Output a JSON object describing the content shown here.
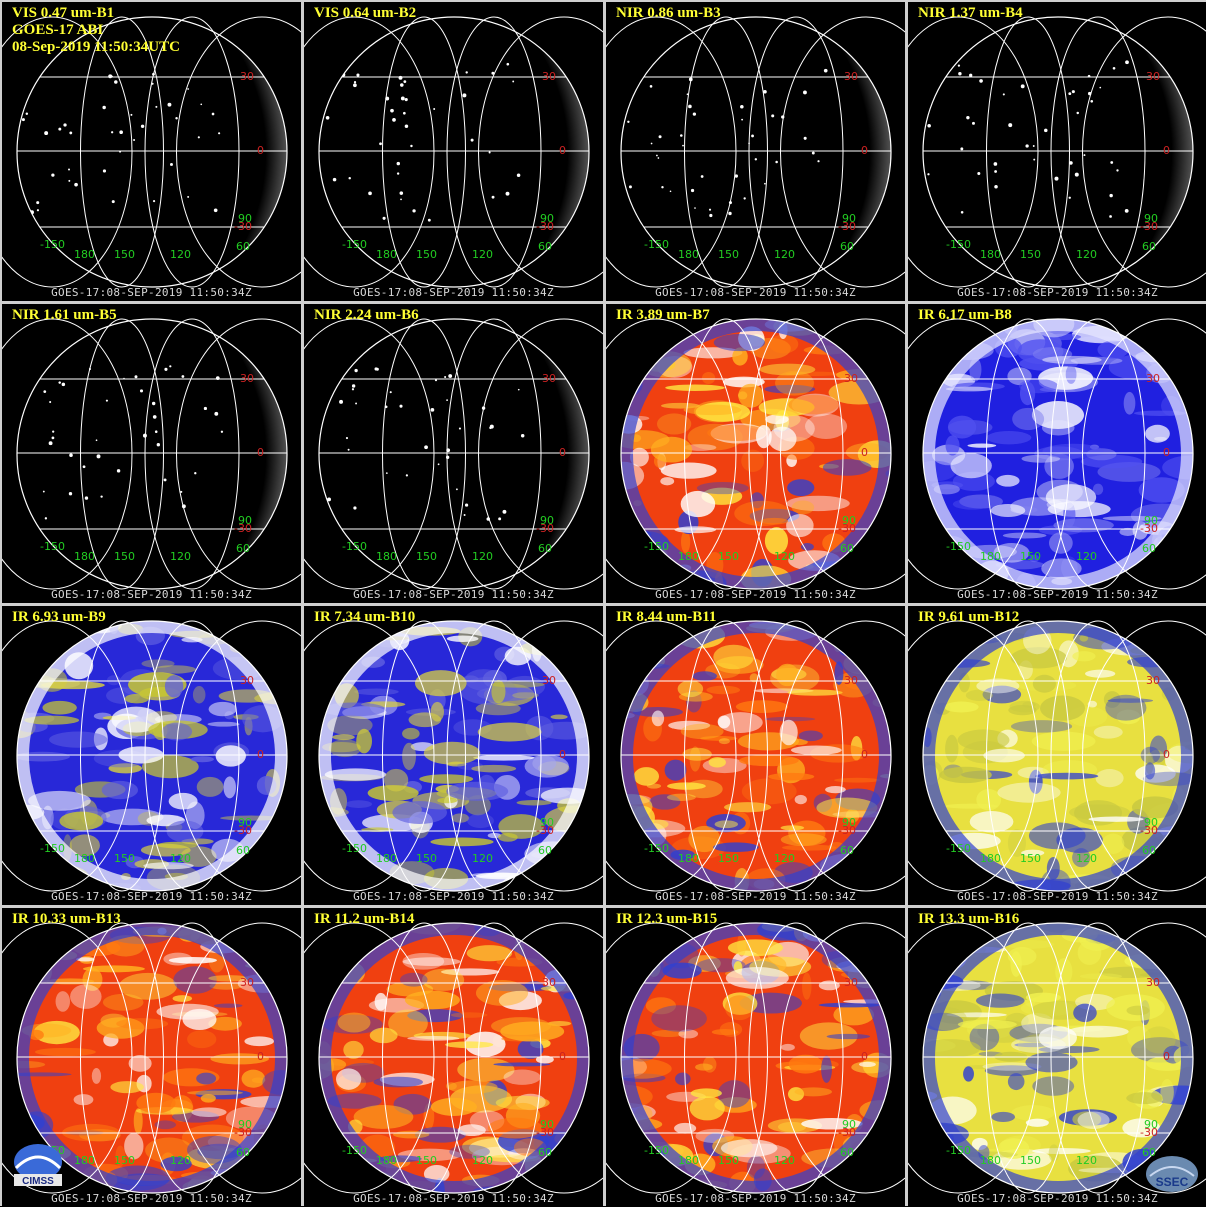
{
  "header": {
    "satellite": "GOES-17 ABI",
    "datetime": "08-Sep-2019 11:50:34UTC"
  },
  "footer_text": "GOES-17:08-SEP-2019 11:50:34Z",
  "grid_labels": {
    "lat": [
      "30",
      "0",
      "-30"
    ],
    "lon": [
      "-150",
      "180",
      "150",
      "120",
      "60"
    ],
    "lon_extra": "90"
  },
  "colors": {
    "title": "#ffff33",
    "grid_line": "#ffffff",
    "lat_label": "#cc2222",
    "lon_label": "#22cc22",
    "footer": "#d8d8d8",
    "panel_border": "#cfcfcf"
  },
  "logos": {
    "left": "CIMSS",
    "right": "SSEC"
  },
  "panels": [
    {
      "title": "VIS 0.47 um-B1",
      "kind": "vis"
    },
    {
      "title": "VIS 0.64 um-B2",
      "kind": "vis"
    },
    {
      "title": "NIR 0.86 um-B3",
      "kind": "vis"
    },
    {
      "title": "NIR 1.37 um-B4",
      "kind": "vis"
    },
    {
      "title": "NIR 1.61 um-B5",
      "kind": "vis"
    },
    {
      "title": "NIR 2.24 um-B6",
      "kind": "vis"
    },
    {
      "title": "IR 3.89 um-B7",
      "kind": "ir-warm"
    },
    {
      "title": "IR 6.17 um-B8",
      "kind": "wv-blue"
    },
    {
      "title": "IR 6.93 um-B9",
      "kind": "wv-mix"
    },
    {
      "title": "IR 7.34 um-B10",
      "kind": "wv-mix"
    },
    {
      "title": "IR 8.44 um-B11",
      "kind": "ir-warm"
    },
    {
      "title": "IR 9.61 um-B12",
      "kind": "ir-yellow"
    },
    {
      "title": "IR 10.33 um-B13",
      "kind": "ir-warm"
    },
    {
      "title": "IR 11.2 um-B14",
      "kind": "ir-warm"
    },
    {
      "title": "IR 12.3 um-B15",
      "kind": "ir-warm"
    },
    {
      "title": "IR 13.3 um-B16",
      "kind": "ir-yellow"
    }
  ]
}
